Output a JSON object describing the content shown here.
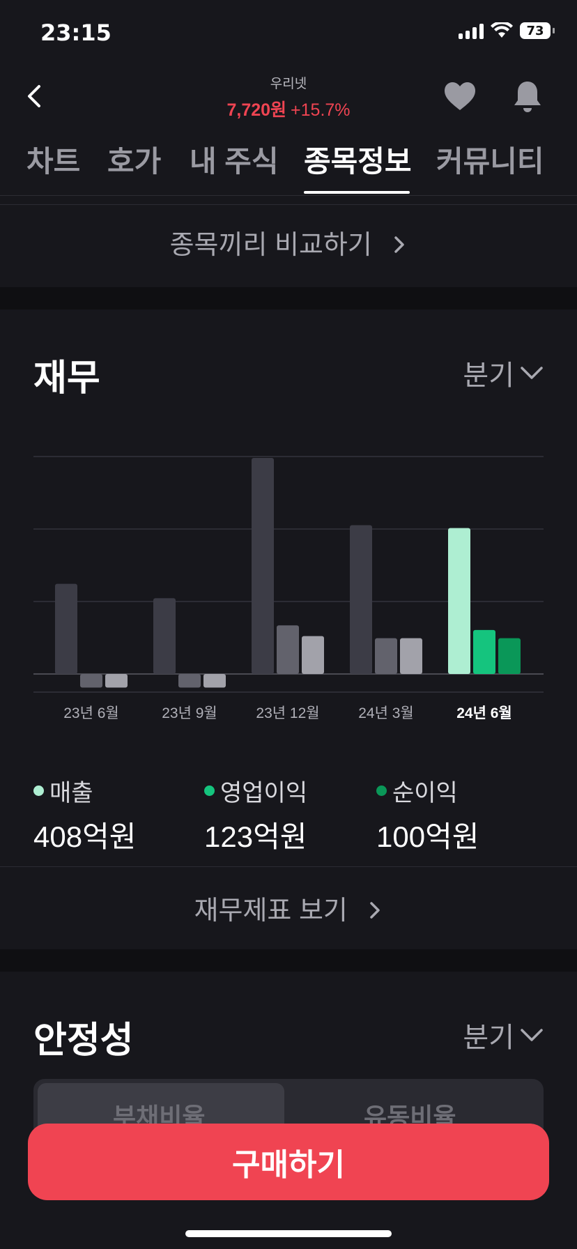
{
  "status": {
    "time": "23:15",
    "battery": "73"
  },
  "header": {
    "stock_name": "우리넷",
    "price": "7,720원",
    "change": "+15.7%"
  },
  "tabs": [
    {
      "label": "차트"
    },
    {
      "label": "호가"
    },
    {
      "label": "내 주식"
    },
    {
      "label": "종목정보",
      "active": true
    },
    {
      "label": "커뮤니티"
    }
  ],
  "compare": {
    "label": "종목끼리 비교하기"
  },
  "financials": {
    "title": "재무",
    "period": "분기",
    "legend": [
      {
        "name": "매출",
        "value": "408억원",
        "color": "#aeeed2"
      },
      {
        "name": "영업이익",
        "value": "123억원",
        "color": "#15c47e"
      },
      {
        "name": "순이익",
        "value": "100억원",
        "color": "#0a9758"
      }
    ],
    "link_label": "재무제표 보기"
  },
  "chart_data": {
    "type": "bar",
    "categories": [
      "23년 6월",
      "23년 9월",
      "23년 12월",
      "24년 3월",
      "24년 6월"
    ],
    "highlight_category": "24년 6월",
    "series": [
      {
        "name": "매출",
        "values": [
          252,
          212,
          604,
          416,
          408
        ]
      },
      {
        "name": "영업이익",
        "values": [
          -38,
          -38,
          136,
          100,
          123
        ]
      },
      {
        "name": "순이익",
        "values": [
          -38,
          -38,
          106,
          100,
          100
        ]
      }
    ],
    "colors": {
      "past": [
        "#3c3c46",
        "#62626c",
        "#a2a2aa"
      ],
      "highlight": [
        "#aeeed2",
        "#15c47e",
        "#0a9758"
      ]
    },
    "grid": true
  },
  "stability": {
    "title": "안정성",
    "period": "분기",
    "segments": [
      "부채비율",
      "유동비율"
    ]
  },
  "buy_button": {
    "label": "구매하기"
  }
}
